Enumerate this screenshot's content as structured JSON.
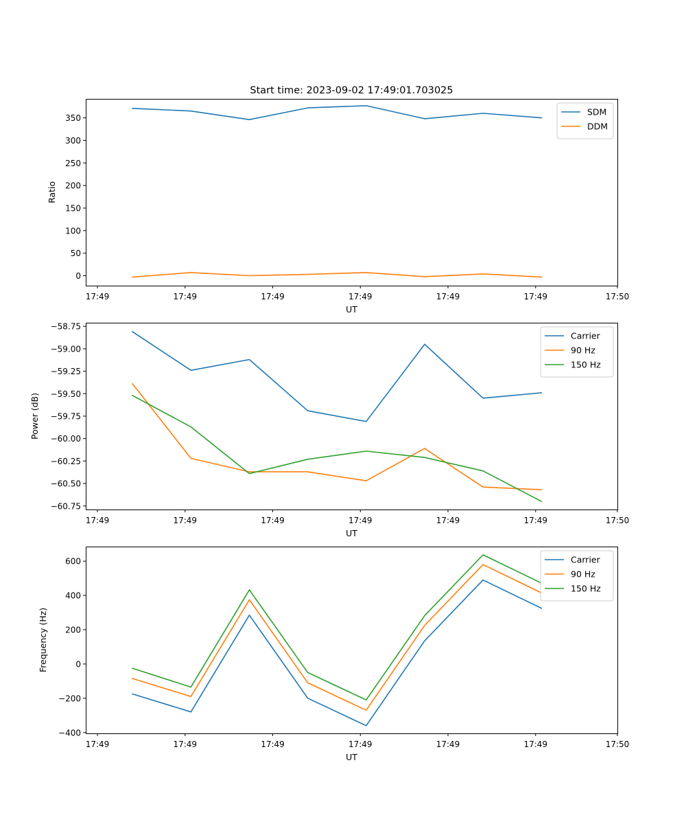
{
  "chart_data": [
    {
      "type": "line",
      "title": "Start time: 2023-09-02 17:49:01.703025",
      "xlabel": "UT",
      "ylabel": "Ratio",
      "x": [
        1,
        2,
        3,
        4,
        5,
        6,
        7,
        8
      ],
      "xlim": [
        0.2,
        9.3
      ],
      "x_ticks": [
        0.4,
        1.9,
        3.4,
        4.9,
        6.4,
        7.9,
        9.3
      ],
      "x_tick_labels": [
        "17:49",
        "17:49",
        "17:49",
        "17:49",
        "17:49",
        "17:49",
        "17:50"
      ],
      "ylim": [
        -22,
        392
      ],
      "y_ticks": [
        0,
        50,
        100,
        150,
        200,
        250,
        300,
        350
      ],
      "y_tick_labels": [
        "0",
        "50",
        "100",
        "150",
        "200",
        "250",
        "300",
        "350"
      ],
      "legend_position": "top-right",
      "series": [
        {
          "name": "SDM",
          "color": "#1f77b4",
          "values": [
            371,
            365,
            346,
            372,
            377,
            348,
            360,
            350
          ]
        },
        {
          "name": "DDM",
          "color": "#ff7f0e",
          "values": [
            -3,
            7,
            0,
            3,
            7,
            -2,
            4,
            -3
          ]
        }
      ]
    },
    {
      "type": "line",
      "title": "",
      "xlabel": "UT",
      "ylabel": "Power (dB)",
      "x": [
        1,
        2,
        3,
        4,
        5,
        6,
        7,
        8
      ],
      "xlim": [
        0.2,
        9.3
      ],
      "x_ticks": [
        0.4,
        1.9,
        3.4,
        4.9,
        6.4,
        7.9,
        9.3
      ],
      "x_tick_labels": [
        "17:49",
        "17:49",
        "17:49",
        "17:49",
        "17:49",
        "17:49",
        "17:50"
      ],
      "ylim": [
        -60.79,
        -58.71
      ],
      "y_ticks": [
        -60.75,
        -60.5,
        -60.25,
        -60.0,
        -59.75,
        -59.5,
        -59.25,
        -59.0,
        -58.75
      ],
      "y_tick_labels": [
        "−60.75",
        "−60.50",
        "−60.25",
        "−60.00",
        "−59.75",
        "−59.50",
        "−59.25",
        "−59.00",
        "−58.75"
      ],
      "legend_position": "top-right",
      "series": [
        {
          "name": "Carrier",
          "color": "#1f77b4",
          "values": [
            -58.81,
            -59.24,
            -59.12,
            -59.69,
            -59.81,
            -58.95,
            -59.55,
            -59.49
          ]
        },
        {
          "name": "90 Hz",
          "color": "#ff7f0e",
          "values": [
            -59.39,
            -60.22,
            -60.37,
            -60.37,
            -60.47,
            -60.11,
            -60.54,
            -60.57
          ]
        },
        {
          "name": "150 Hz",
          "color": "#2ca02c",
          "values": [
            -59.52,
            -59.87,
            -60.39,
            -60.23,
            -60.14,
            -60.21,
            -60.36,
            -60.7
          ]
        }
      ]
    },
    {
      "type": "line",
      "title": "",
      "xlabel": "UT",
      "ylabel": "Frequency (Hz)",
      "x": [
        1,
        2,
        3,
        4,
        5,
        6,
        7,
        8
      ],
      "xlim": [
        0.2,
        9.3
      ],
      "x_ticks": [
        0.4,
        1.9,
        3.4,
        4.9,
        6.4,
        7.9,
        9.3
      ],
      "x_tick_labels": [
        "17:49",
        "17:49",
        "17:49",
        "17:49",
        "17:49",
        "17:49",
        "17:50"
      ],
      "ylim": [
        -405,
        685
      ],
      "y_ticks": [
        -400,
        -200,
        0,
        200,
        400,
        600
      ],
      "y_tick_labels": [
        "−400",
        "−200",
        "0",
        "200",
        "400",
        "600"
      ],
      "legend_position": "top-right",
      "series": [
        {
          "name": "Carrier",
          "color": "#1f77b4",
          "values": [
            -175,
            -280,
            285,
            -200,
            -360,
            135,
            490,
            325
          ]
        },
        {
          "name": "90 Hz",
          "color": "#ff7f0e",
          "values": [
            -85,
            -190,
            375,
            -110,
            -270,
            225,
            580,
            415
          ]
        },
        {
          "name": "150 Hz",
          "color": "#2ca02c",
          "values": [
            -25,
            -135,
            432,
            -50,
            -210,
            282,
            637,
            472
          ]
        }
      ]
    }
  ]
}
